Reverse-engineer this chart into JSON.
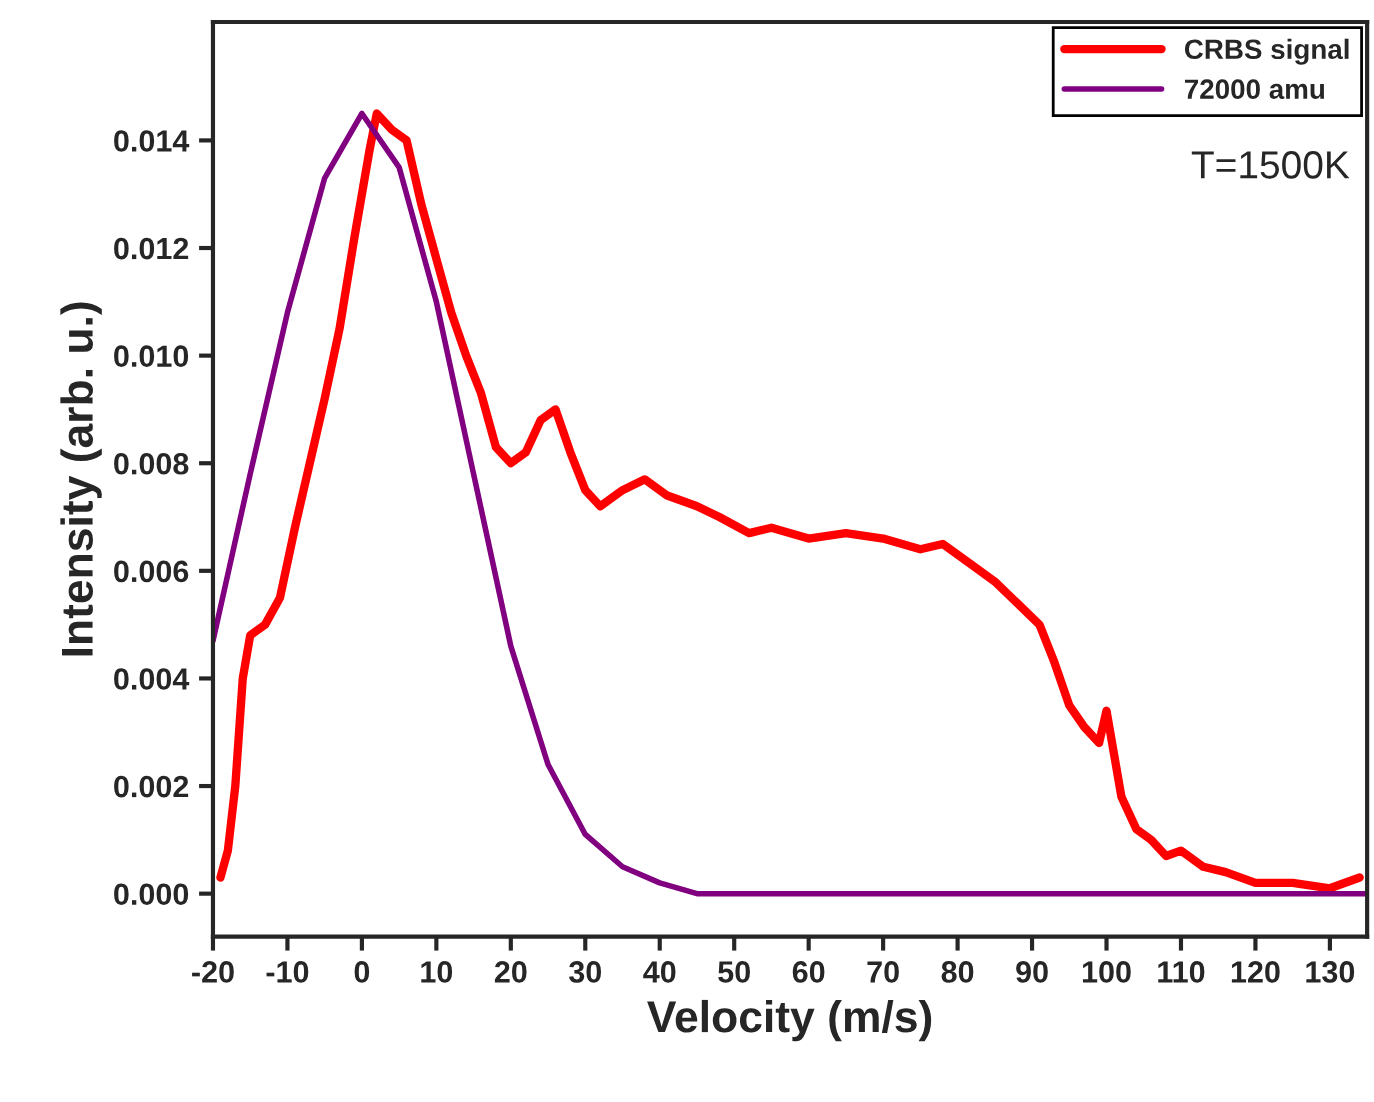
{
  "chart_data": {
    "type": "line",
    "xlabel": "Velocity (m/s)",
    "ylabel": "Intensity (arb. u.)",
    "annotations": [
      "T=1500K"
    ],
    "xlim": [
      -20,
      135
    ],
    "ylim": [
      -0.0008,
      0.0162
    ],
    "xticks": [
      -20,
      -10,
      0,
      10,
      20,
      30,
      40,
      50,
      60,
      70,
      80,
      90,
      100,
      110,
      120,
      130
    ],
    "yticks": [
      {
        "value": 0,
        "label": "0.000"
      },
      {
        "value": 0.002,
        "label": "0.002"
      },
      {
        "value": 0.004,
        "label": "0.004"
      },
      {
        "value": 0.006,
        "label": "0.006"
      },
      {
        "value": 0.008,
        "label": "0.008"
      },
      {
        "value": 0.01,
        "label": "0.010"
      },
      {
        "value": 0.012,
        "label": "0.012"
      },
      {
        "value": 0.014,
        "label": "0.014"
      }
    ],
    "grid": false,
    "legend": "top right",
    "marker": "none",
    "line_style": "solid",
    "series": [
      {
        "name": "CRBS signal",
        "color": "#ff0000",
        "x": [
          -19,
          -18,
          -17,
          -16,
          -15,
          -13,
          -11,
          -9,
          -7,
          -5,
          -3,
          -1,
          0,
          1,
          2,
          4,
          6,
          8,
          10,
          12,
          14,
          16,
          18,
          20,
          22,
          24,
          26,
          28,
          30,
          32,
          35,
          38,
          41,
          45,
          48,
          52,
          55,
          60,
          65,
          70,
          75,
          78,
          82,
          85,
          88,
          91,
          93,
          95,
          97,
          99,
          100,
          102,
          104,
          106,
          108,
          110,
          113,
          116,
          120,
          125,
          130,
          134
        ],
        "values": [
          0.0003,
          0.0008,
          0.002,
          0.004,
          0.0048,
          0.005,
          0.0055,
          0.0068,
          0.008,
          0.0092,
          0.0105,
          0.0122,
          0.013,
          0.0138,
          0.0145,
          0.0142,
          0.014,
          0.0128,
          0.0118,
          0.0108,
          0.01,
          0.0093,
          0.0083,
          0.008,
          0.0082,
          0.0088,
          0.009,
          0.0082,
          0.0075,
          0.0072,
          0.0075,
          0.0077,
          0.0074,
          0.0072,
          0.007,
          0.0067,
          0.0068,
          0.0066,
          0.0067,
          0.0066,
          0.0064,
          0.0065,
          0.0061,
          0.0058,
          0.0054,
          0.005,
          0.0043,
          0.0035,
          0.0031,
          0.0028,
          0.0034,
          0.0018,
          0.0012,
          0.001,
          0.0007,
          0.0008,
          0.0005,
          0.0004,
          0.0002,
          0.0002,
          0.0001,
          0.0003
        ]
      },
      {
        "name": "72000 amu",
        "color": "#800080",
        "x": [
          -20,
          -15,
          -10,
          -5,
          0,
          5,
          10,
          15,
          20,
          25,
          30,
          35,
          40,
          45,
          50,
          135
        ],
        "values": [
          0.0047,
          0.0078,
          0.0108,
          0.0133,
          0.0145,
          0.0135,
          0.011,
          0.0078,
          0.0046,
          0.0024,
          0.0011,
          0.0005,
          0.0002,
          0.0,
          0.0,
          0.0
        ]
      }
    ]
  }
}
